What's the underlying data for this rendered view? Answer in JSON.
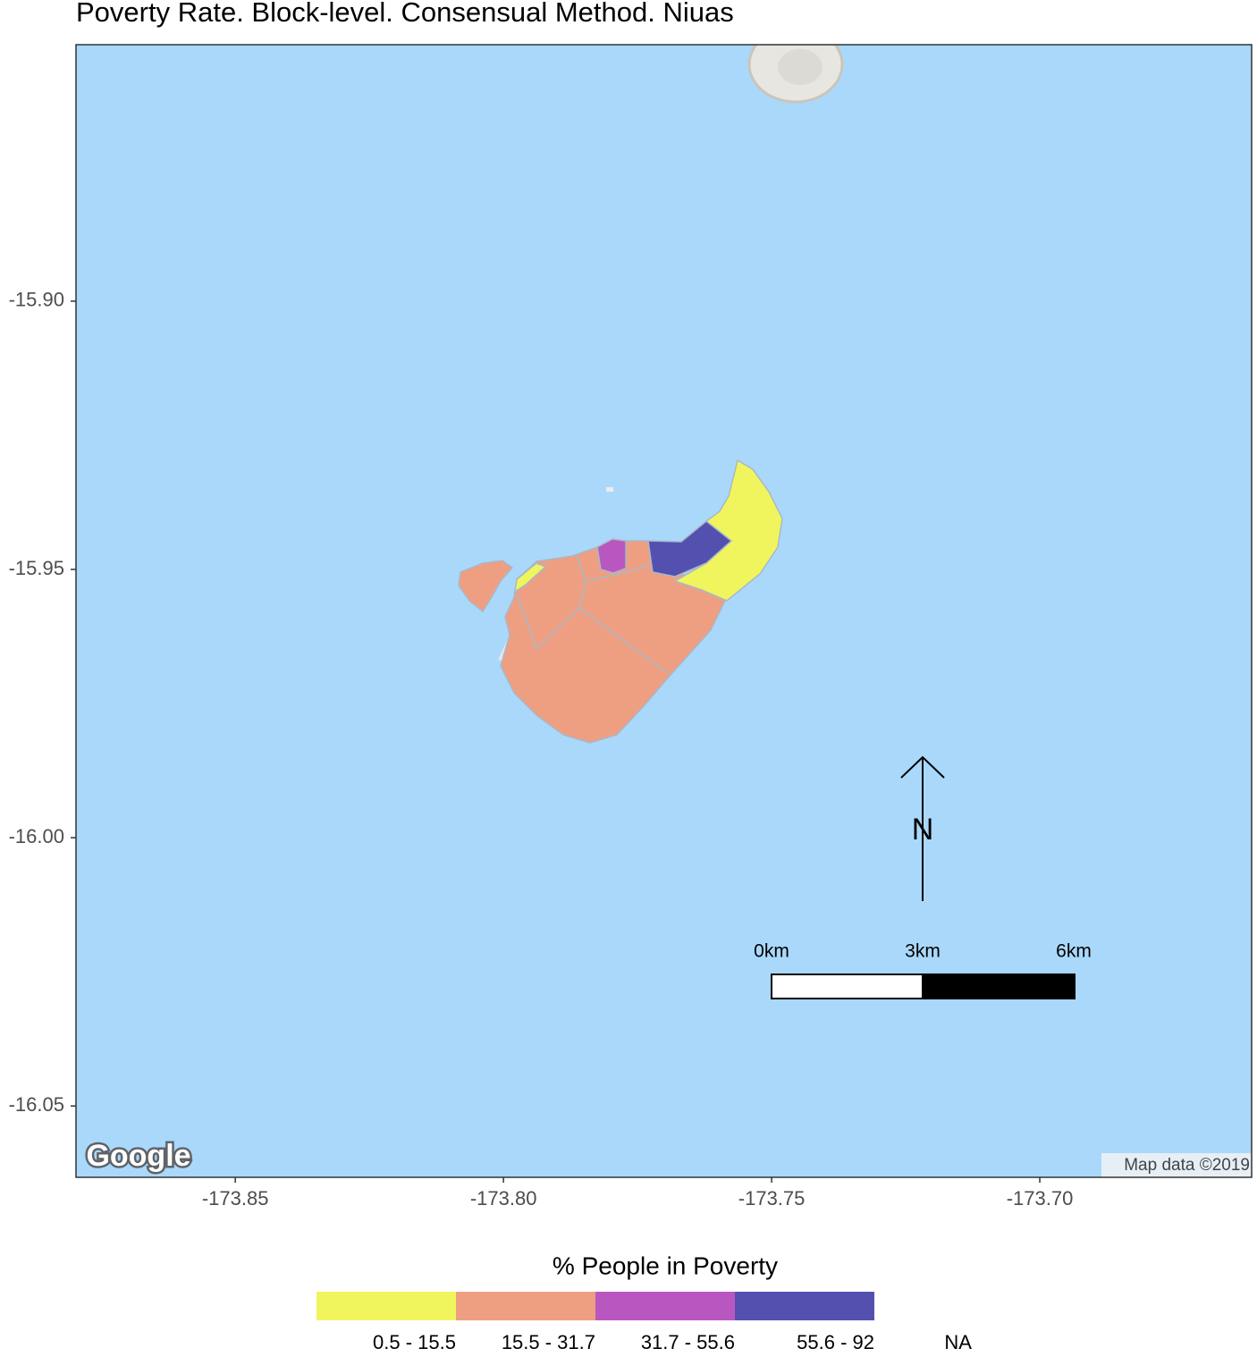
{
  "title": "Poverty Rate. Block-level. Consensual Method. Niuas",
  "map": {
    "xlim": [
      -173.8797,
      -173.6605
    ],
    "ylim": [
      -16.0633,
      -15.8522
    ],
    "xticks": [
      -173.85,
      {
        "value": -173.8,
        "label": "-173.80"
      },
      -173.75,
      {
        "value": -173.7,
        "label": "-173.70"
      }
    ],
    "yticks": [
      {
        "value": -15.9,
        "label": "-15.90"
      },
      -15.95,
      {
        "value": -16.0,
        "label": "-16.00"
      },
      -16.05
    ],
    "north_label": "N",
    "scale_labels": [
      "0km",
      "3km",
      "6km"
    ],
    "logo": "Google",
    "attribution": "Map data ©2019"
  },
  "legend": {
    "title": "% People in Poverty",
    "items": [
      {
        "label": "0.5 - 15.5",
        "color": "#f0f55e"
      },
      {
        "label": "15.5 - 31.7",
        "color": "#ee9f82"
      },
      {
        "label": "31.7 - 55.6",
        "color": "#b857c0"
      },
      {
        "label": "55.6 - 92",
        "color": "#5450b0"
      },
      {
        "label": "NA"
      }
    ]
  }
}
